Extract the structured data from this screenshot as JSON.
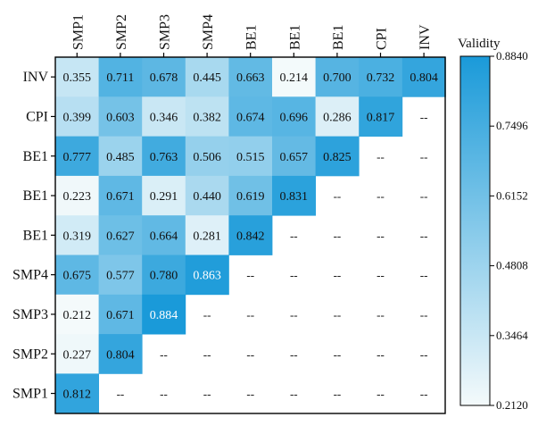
{
  "chart_data": {
    "type": "heatmap",
    "title": "",
    "x_labels": [
      "SMP1",
      "SMP2",
      "SMP3",
      "SMP4",
      "BE1",
      "BE1",
      "BE1",
      "CPI",
      "INV"
    ],
    "y_labels": [
      "INV",
      "CPI",
      "BE1",
      "BE1",
      "BE1",
      "SMP4",
      "SMP3",
      "SMP2",
      "SMP1"
    ],
    "values": [
      [
        0.355,
        0.711,
        0.678,
        0.445,
        0.663,
        0.214,
        0.7,
        0.732,
        0.804
      ],
      [
        0.399,
        0.603,
        0.346,
        0.382,
        0.674,
        0.696,
        0.286,
        0.817,
        null
      ],
      [
        0.777,
        0.485,
        0.763,
        0.506,
        0.515,
        0.657,
        0.825,
        null,
        null
      ],
      [
        0.223,
        0.671,
        0.291,
        0.44,
        0.619,
        0.831,
        null,
        null,
        null
      ],
      [
        0.319,
        0.627,
        0.664,
        0.281,
        0.842,
        null,
        null,
        null,
        null
      ],
      [
        0.675,
        0.577,
        0.78,
        0.863,
        null,
        null,
        null,
        null,
        null
      ],
      [
        0.212,
        0.671,
        0.884,
        null,
        null,
        null,
        null,
        null,
        null
      ],
      [
        0.227,
        0.804,
        null,
        null,
        null,
        null,
        null,
        null,
        null
      ],
      [
        0.812,
        null,
        null,
        null,
        null,
        null,
        null,
        null,
        null
      ]
    ],
    "empty_cell_text": "--",
    "colorbar": {
      "label": "Validity",
      "min": 0.212,
      "max": 0.884,
      "ticks": [
        "0.8840",
        "0.7496",
        "0.6152",
        "0.4808",
        "0.3464",
        "0.2120"
      ],
      "color_low": "#f4fafb",
      "color_high": "#1a9ad9"
    }
  }
}
